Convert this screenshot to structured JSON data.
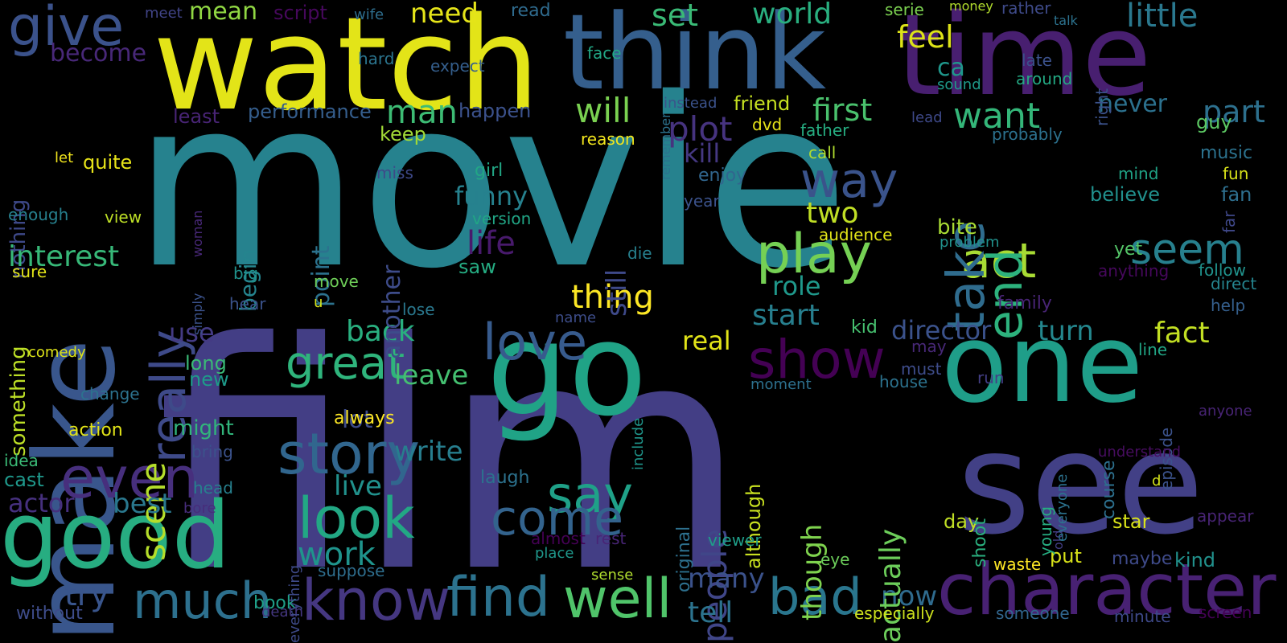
{
  "words": [
    {
      "t": "movie",
      "c": "#26828e"
    },
    {
      "t": "film",
      "c": "#433e85"
    },
    {
      "t": "make",
      "c": "#39568c"
    },
    {
      "t": "watch",
      "c": "#e3e418"
    },
    {
      "t": "think",
      "c": "#355f8d"
    },
    {
      "t": "time",
      "c": "#481f70"
    },
    {
      "t": "go",
      "c": "#20a386"
    },
    {
      "t": "one",
      "c": "#1f9e89"
    },
    {
      "t": "see",
      "c": "#424086"
    },
    {
      "t": "good",
      "c": "#27ad81"
    },
    {
      "t": "character",
      "c": "#482173"
    },
    {
      "t": "know",
      "c": "#453781"
    },
    {
      "t": "find",
      "c": "#2c728e"
    },
    {
      "t": "well",
      "c": "#50c46a"
    },
    {
      "t": "much",
      "c": "#2d708e"
    },
    {
      "t": "bad",
      "c": "#2a768e"
    },
    {
      "t": "story",
      "c": "#31668e"
    },
    {
      "t": "look",
      "c": "#22a884"
    },
    {
      "t": "say",
      "c": "#1fa188"
    },
    {
      "t": "come",
      "c": "#33638d"
    },
    {
      "t": "even",
      "c": "#472f7d"
    },
    {
      "t": "show",
      "c": "#440154"
    },
    {
      "t": "love",
      "c": "#375b8d"
    },
    {
      "t": "great",
      "c": "#2fb47c"
    },
    {
      "t": "play",
      "c": "#75d054"
    },
    {
      "t": "act",
      "c": "#a8db34"
    },
    {
      "t": "people",
      "c": "#404688"
    },
    {
      "t": "scene",
      "c": "#b5de2b"
    },
    {
      "t": "really",
      "c": "#3e4a89"
    },
    {
      "t": "give",
      "c": "#3b528b"
    },
    {
      "t": "take",
      "c": "#2f6c8e"
    },
    {
      "t": "end",
      "c": "#2db27d"
    },
    {
      "t": "way",
      "c": "#3a538b"
    },
    {
      "t": "seem",
      "c": "#27808e"
    },
    {
      "t": "want",
      "c": "#34b679"
    },
    {
      "t": "first",
      "c": "#4ac16d"
    },
    {
      "t": "feel",
      "c": "#dde318"
    },
    {
      "t": "set",
      "c": "#3aba76"
    },
    {
      "t": "world",
      "c": "#29af7f"
    },
    {
      "t": "little",
      "c": "#2a788e"
    },
    {
      "t": "will",
      "c": "#7ad151"
    },
    {
      "t": "plot",
      "c": "#46337f"
    },
    {
      "t": "kill",
      "c": "#453882"
    },
    {
      "t": "man",
      "c": "#3dbc74"
    },
    {
      "t": "need",
      "c": "#e5e419"
    },
    {
      "t": "mean",
      "c": "#90d743"
    },
    {
      "t": "become",
      "c": "#482878"
    },
    {
      "t": "script",
      "c": "#46085c"
    },
    {
      "t": "performance",
      "c": "#355e8d"
    },
    {
      "t": "happen",
      "c": "#3b518b"
    },
    {
      "t": "least",
      "c": "#482475"
    },
    {
      "t": "keep",
      "c": "#a2da37"
    },
    {
      "t": "nothing",
      "c": "#3e4989"
    },
    {
      "t": "interest",
      "c": "#37b878"
    },
    {
      "t": "use",
      "c": "#443b84"
    },
    {
      "t": "something",
      "c": "#bddf26"
    },
    {
      "t": "quite",
      "c": "#e7e419"
    },
    {
      "t": "let",
      "c": "#f1e51d"
    },
    {
      "t": "actor",
      "c": "#46307e"
    },
    {
      "t": "best",
      "c": "#2a788e"
    },
    {
      "t": "try",
      "c": "#39558c"
    },
    {
      "t": "life",
      "c": "#481a6c"
    },
    {
      "t": "funny",
      "c": "#26818e"
    },
    {
      "t": "two",
      "c": "#c0df25"
    },
    {
      "t": "thing",
      "c": "#fde725"
    },
    {
      "t": "role",
      "c": "#1f988b"
    },
    {
      "t": "start",
      "c": "#277f8e"
    },
    {
      "t": "director",
      "c": "#3b528b"
    },
    {
      "t": "turn",
      "c": "#24878e"
    },
    {
      "t": "fact",
      "c": "#c2df23"
    },
    {
      "t": "never",
      "c": "#2c718e"
    },
    {
      "t": "part",
      "c": "#2d708e"
    },
    {
      "t": "real",
      "c": "#e2e418"
    },
    {
      "t": "back",
      "c": "#29af7f"
    },
    {
      "t": "leave",
      "c": "#44bf70"
    },
    {
      "t": "lot",
      "c": "#3e4c8a"
    },
    {
      "t": "write",
      "c": "#277e8e"
    },
    {
      "t": "live",
      "c": "#21918c"
    },
    {
      "t": "work",
      "c": "#1f948c"
    },
    {
      "t": "many",
      "c": "#3b528b"
    },
    {
      "t": "tell",
      "c": "#2c738e"
    },
    {
      "t": "now",
      "c": "#2f6b8e"
    },
    {
      "t": "still",
      "c": "#3e4989"
    },
    {
      "t": "point",
      "c": "#2c728e"
    },
    {
      "t": "begin",
      "c": "#25848e"
    },
    {
      "t": "another",
      "c": "#3e4c8a"
    },
    {
      "t": "though",
      "c": "#7fd34e"
    },
    {
      "t": "actually",
      "c": "#6ccd5a"
    },
    {
      "t": "although",
      "c": "#c8e020"
    },
    {
      "t": "original",
      "c": "#2d708e"
    },
    {
      "t": "friend",
      "c": "#c5e021"
    },
    {
      "t": "dvd",
      "c": "#e7e419"
    },
    {
      "t": "father",
      "c": "#26ad81"
    },
    {
      "t": "call",
      "c": "#b0dd2f"
    },
    {
      "t": "enjoy",
      "c": "#31668e"
    },
    {
      "t": "girl",
      "c": "#22a785"
    },
    {
      "t": "version",
      "c": "#21a585"
    },
    {
      "t": "saw",
      "c": "#25ac82"
    },
    {
      "t": "big",
      "c": "#20928c"
    },
    {
      "t": "move",
      "c": "#6ece58"
    },
    {
      "t": "u",
      "c": "#d5e21a"
    },
    {
      "t": "die",
      "c": "#27808e"
    },
    {
      "t": "lose",
      "c": "#2a788e"
    },
    {
      "t": "name",
      "c": "#3d4d8a"
    },
    {
      "t": "long",
      "c": "#3aba76"
    },
    {
      "t": "new",
      "c": "#1e9b8a"
    },
    {
      "t": "might",
      "c": "#31b57b"
    },
    {
      "t": "bring",
      "c": "#3b528b"
    },
    {
      "t": "head",
      "c": "#27808e"
    },
    {
      "t": "bore",
      "c": "#472d7b"
    },
    {
      "t": "almost",
      "c": "#440154"
    },
    {
      "t": "rest",
      "c": "#482576"
    },
    {
      "t": "place",
      "c": "#1f978b"
    },
    {
      "t": "laugh",
      "c": "#2c728e"
    },
    {
      "t": "always",
      "c": "#fde725"
    },
    {
      "t": "sense",
      "c": "#b0dd2f"
    },
    {
      "t": "suppose",
      "c": "#2e6e8e"
    },
    {
      "t": "book",
      "c": "#1fa088"
    },
    {
      "t": "death",
      "c": "#453781"
    },
    {
      "t": "without",
      "c": "#3e4c8a"
    },
    {
      "t": "especially",
      "c": "#cde11d"
    },
    {
      "t": "someone",
      "c": "#31668e"
    },
    {
      "t": "minute",
      "c": "#3e4989"
    },
    {
      "t": "screen",
      "c": "#440154"
    },
    {
      "t": "waste",
      "c": "#fde725"
    },
    {
      "t": "put",
      "c": "#d8e219"
    },
    {
      "t": "maybe",
      "c": "#3e4a89"
    },
    {
      "t": "kind",
      "c": "#21918c"
    },
    {
      "t": "star",
      "c": "#dae319"
    },
    {
      "t": "appear",
      "c": "#482475"
    },
    {
      "t": "day",
      "c": "#c0df25"
    },
    {
      "t": "eye",
      "c": "#6ccd5a"
    },
    {
      "t": "viewer",
      "c": "#1f9e89"
    },
    {
      "t": "shoot",
      "c": "#2ab07f"
    },
    {
      "t": "young",
      "c": "#26ad81"
    },
    {
      "t": "old",
      "c": "#433e85"
    },
    {
      "t": "everyone",
      "c": "#2c728e"
    },
    {
      "t": "course",
      "c": "#2d708e"
    },
    {
      "t": "episode",
      "c": "#3b528b"
    },
    {
      "t": "anyone",
      "c": "#482475"
    },
    {
      "t": "understand",
      "c": "#470d60"
    },
    {
      "t": "d",
      "c": "#d2e21b"
    },
    {
      "t": "run",
      "c": "#433e85"
    },
    {
      "t": "line",
      "c": "#21a585"
    },
    {
      "t": "house",
      "c": "#2c728e"
    },
    {
      "t": "must",
      "c": "#3e4c8a"
    },
    {
      "t": "may",
      "c": "#482878"
    },
    {
      "t": "moment",
      "c": "#2d708e"
    },
    {
      "t": "include",
      "c": "#1f958b"
    },
    {
      "t": "kid",
      "c": "#46c06f"
    },
    {
      "t": "family",
      "c": "#482475"
    },
    {
      "t": "yet",
      "c": "#54c568"
    },
    {
      "t": "anything",
      "c": "#46085c"
    },
    {
      "t": "follow",
      "c": "#20928c"
    },
    {
      "t": "direct",
      "c": "#25848e"
    },
    {
      "t": "help",
      "c": "#355f8d"
    },
    {
      "t": "bite",
      "c": "#a8db34"
    },
    {
      "t": "problem",
      "c": "#21918c"
    },
    {
      "t": "audience",
      "c": "#e2e418"
    },
    {
      "t": "believe",
      "c": "#21908d"
    },
    {
      "t": "fan",
      "c": "#2e6f8e"
    },
    {
      "t": "far",
      "c": "#3f4889"
    },
    {
      "t": "mind",
      "c": "#20a386"
    },
    {
      "t": "fun",
      "c": "#d8e219"
    },
    {
      "t": "music",
      "c": "#2c728e"
    },
    {
      "t": "guy",
      "c": "#5cc863"
    },
    {
      "t": "probably",
      "c": "#2c718e"
    },
    {
      "t": "lead",
      "c": "#3e4989"
    },
    {
      "t": "around",
      "c": "#23a983"
    },
    {
      "t": "late",
      "c": "#3b518b"
    },
    {
      "t": "sound",
      "c": "#1f9a8a"
    },
    {
      "t": "right",
      "c": "#3b528b"
    },
    {
      "t": "ca",
      "c": "#1f978b"
    },
    {
      "t": "serie",
      "c": "#7cd250"
    },
    {
      "t": "money",
      "c": "#b2dd2d"
    },
    {
      "t": "rather",
      "c": "#3e4a89"
    },
    {
      "t": "talk",
      "c": "#2c728e"
    },
    {
      "t": "read",
      "c": "#2f6b8e"
    },
    {
      "t": "meet",
      "c": "#414487"
    },
    {
      "t": "wife",
      "c": "#2e6e8e"
    },
    {
      "t": "hard",
      "c": "#2b748e"
    },
    {
      "t": "expect",
      "c": "#355f8d"
    },
    {
      "t": "face",
      "c": "#22a785"
    },
    {
      "t": "remember",
      "c": "#2c728e"
    },
    {
      "t": "instead",
      "c": "#3b528b"
    },
    {
      "t": "reason",
      "c": "#f1e51d"
    },
    {
      "t": "miss",
      "c": "#3e4989"
    },
    {
      "t": "year",
      "c": "#3b528b"
    },
    {
      "t": "woman",
      "c": "#482878"
    },
    {
      "t": "view",
      "c": "#bddf26"
    },
    {
      "t": "enough",
      "c": "#27808e"
    },
    {
      "t": "sure",
      "c": "#e2e418"
    },
    {
      "t": "simply",
      "c": "#3b528b"
    },
    {
      "t": "hear",
      "c": "#3b528b"
    },
    {
      "t": "comedy",
      "c": "#dde318"
    },
    {
      "t": "change",
      "c": "#2c728e"
    },
    {
      "t": "action",
      "c": "#e2e418"
    },
    {
      "t": "idea",
      "c": "#3aba76"
    },
    {
      "t": "cast",
      "c": "#1f988b"
    },
    {
      "t": "everything",
      "c": "#3e4a89"
    }
  ]
}
